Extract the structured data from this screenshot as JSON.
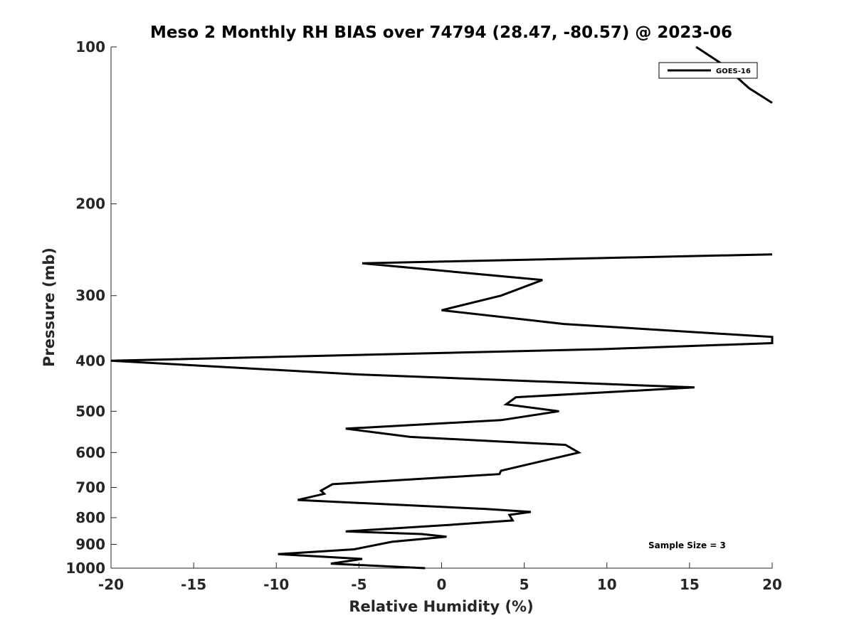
{
  "chart_data": {
    "type": "line",
    "title": "Meso 2 Monthly RH BIAS over 74794 (28.47, -80.57) @ 2023-06",
    "xlabel": "Relative Humidity (%)",
    "ylabel": "Pressure (mb)",
    "xlim": [
      -20,
      20
    ],
    "ylim": [
      100,
      1000
    ],
    "yscale": "log",
    "y_reversed": true,
    "grid": false,
    "xticks": [
      -20,
      -15,
      -10,
      -5,
      0,
      5,
      10,
      15,
      20
    ],
    "xtick_labels": [
      "-20",
      "-15",
      "-10",
      "-5",
      "0",
      "5",
      "10",
      "15",
      "20"
    ],
    "yticks": [
      100,
      200,
      300,
      400,
      500,
      600,
      700,
      800,
      900,
      1000
    ],
    "ytick_labels": [
      "100",
      "200",
      "300",
      "400",
      "500",
      "600",
      "700",
      "800",
      "900",
      "1000"
    ],
    "legend_position": "top-right",
    "annotation": "Sample Size = 3",
    "series": [
      {
        "name": "GOES-16",
        "color": "#000000",
        "x": [
          -1.0,
          -6.7,
          -4.8,
          -9.9,
          -5.3,
          -3.0,
          0.3,
          -1.2,
          -5.8,
          0.7,
          4.3,
          4.1,
          5.4,
          2.7,
          -8.7,
          -7.1,
          -7.3,
          -6.6,
          3.5,
          3.6,
          8.3,
          7.5,
          -1.9,
          -5.8,
          3.6,
          7.1,
          3.9,
          4.5,
          15.3,
          -5.0,
          -20.0,
          9.7,
          20.0,
          20.0,
          7.4,
          0.0,
          3.6,
          6.1,
          -4.8,
          20.0
        ],
        "y": [
          1000,
          980,
          960,
          940,
          920,
          890,
          870,
          860,
          850,
          825,
          810,
          790,
          780,
          770,
          740,
          720,
          710,
          690,
          660,
          650,
          600,
          580,
          560,
          540,
          520,
          500,
          485,
          470,
          450,
          425,
          400,
          380,
          370,
          360,
          340,
          320,
          300,
          280,
          260,
          250
        ],
        "upper_segment": {
          "x": [
            15.4,
            17.0,
            18.6,
            20.0
          ],
          "y": [
            100,
            108,
            120,
            128
          ]
        }
      }
    ]
  }
}
